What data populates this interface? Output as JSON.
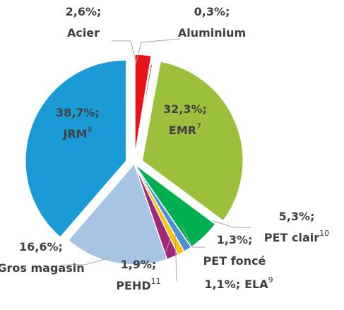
{
  "chart_data": {
    "type": "pie",
    "categories": [
      "Acier",
      "Aluminium",
      "EMR",
      "PET clair",
      "PET foncé",
      "ELA",
      "PEHD",
      "Gros magasin",
      "JRM"
    ],
    "notes": [
      null,
      null,
      "7",
      "10",
      null,
      "9",
      "11",
      null,
      "8"
    ],
    "values": [
      2.6,
      0.3,
      32.3,
      5.3,
      1.3,
      1.1,
      1.9,
      16.6,
      38.7
    ],
    "value_labels": [
      "2,6%;",
      "0,3%;",
      "32,3%;",
      "5,3%;",
      "1,3%;",
      "1,1%;",
      "1,9%;",
      "16,6%;",
      "38,7%;"
    ],
    "colors": [
      "#e8141b",
      "#a0504a",
      "#9dc03c",
      "#00b050",
      "#4f8fd6",
      "#ffc000",
      "#a0287a",
      "#a6c4e4",
      "#1b9bd6"
    ]
  }
}
